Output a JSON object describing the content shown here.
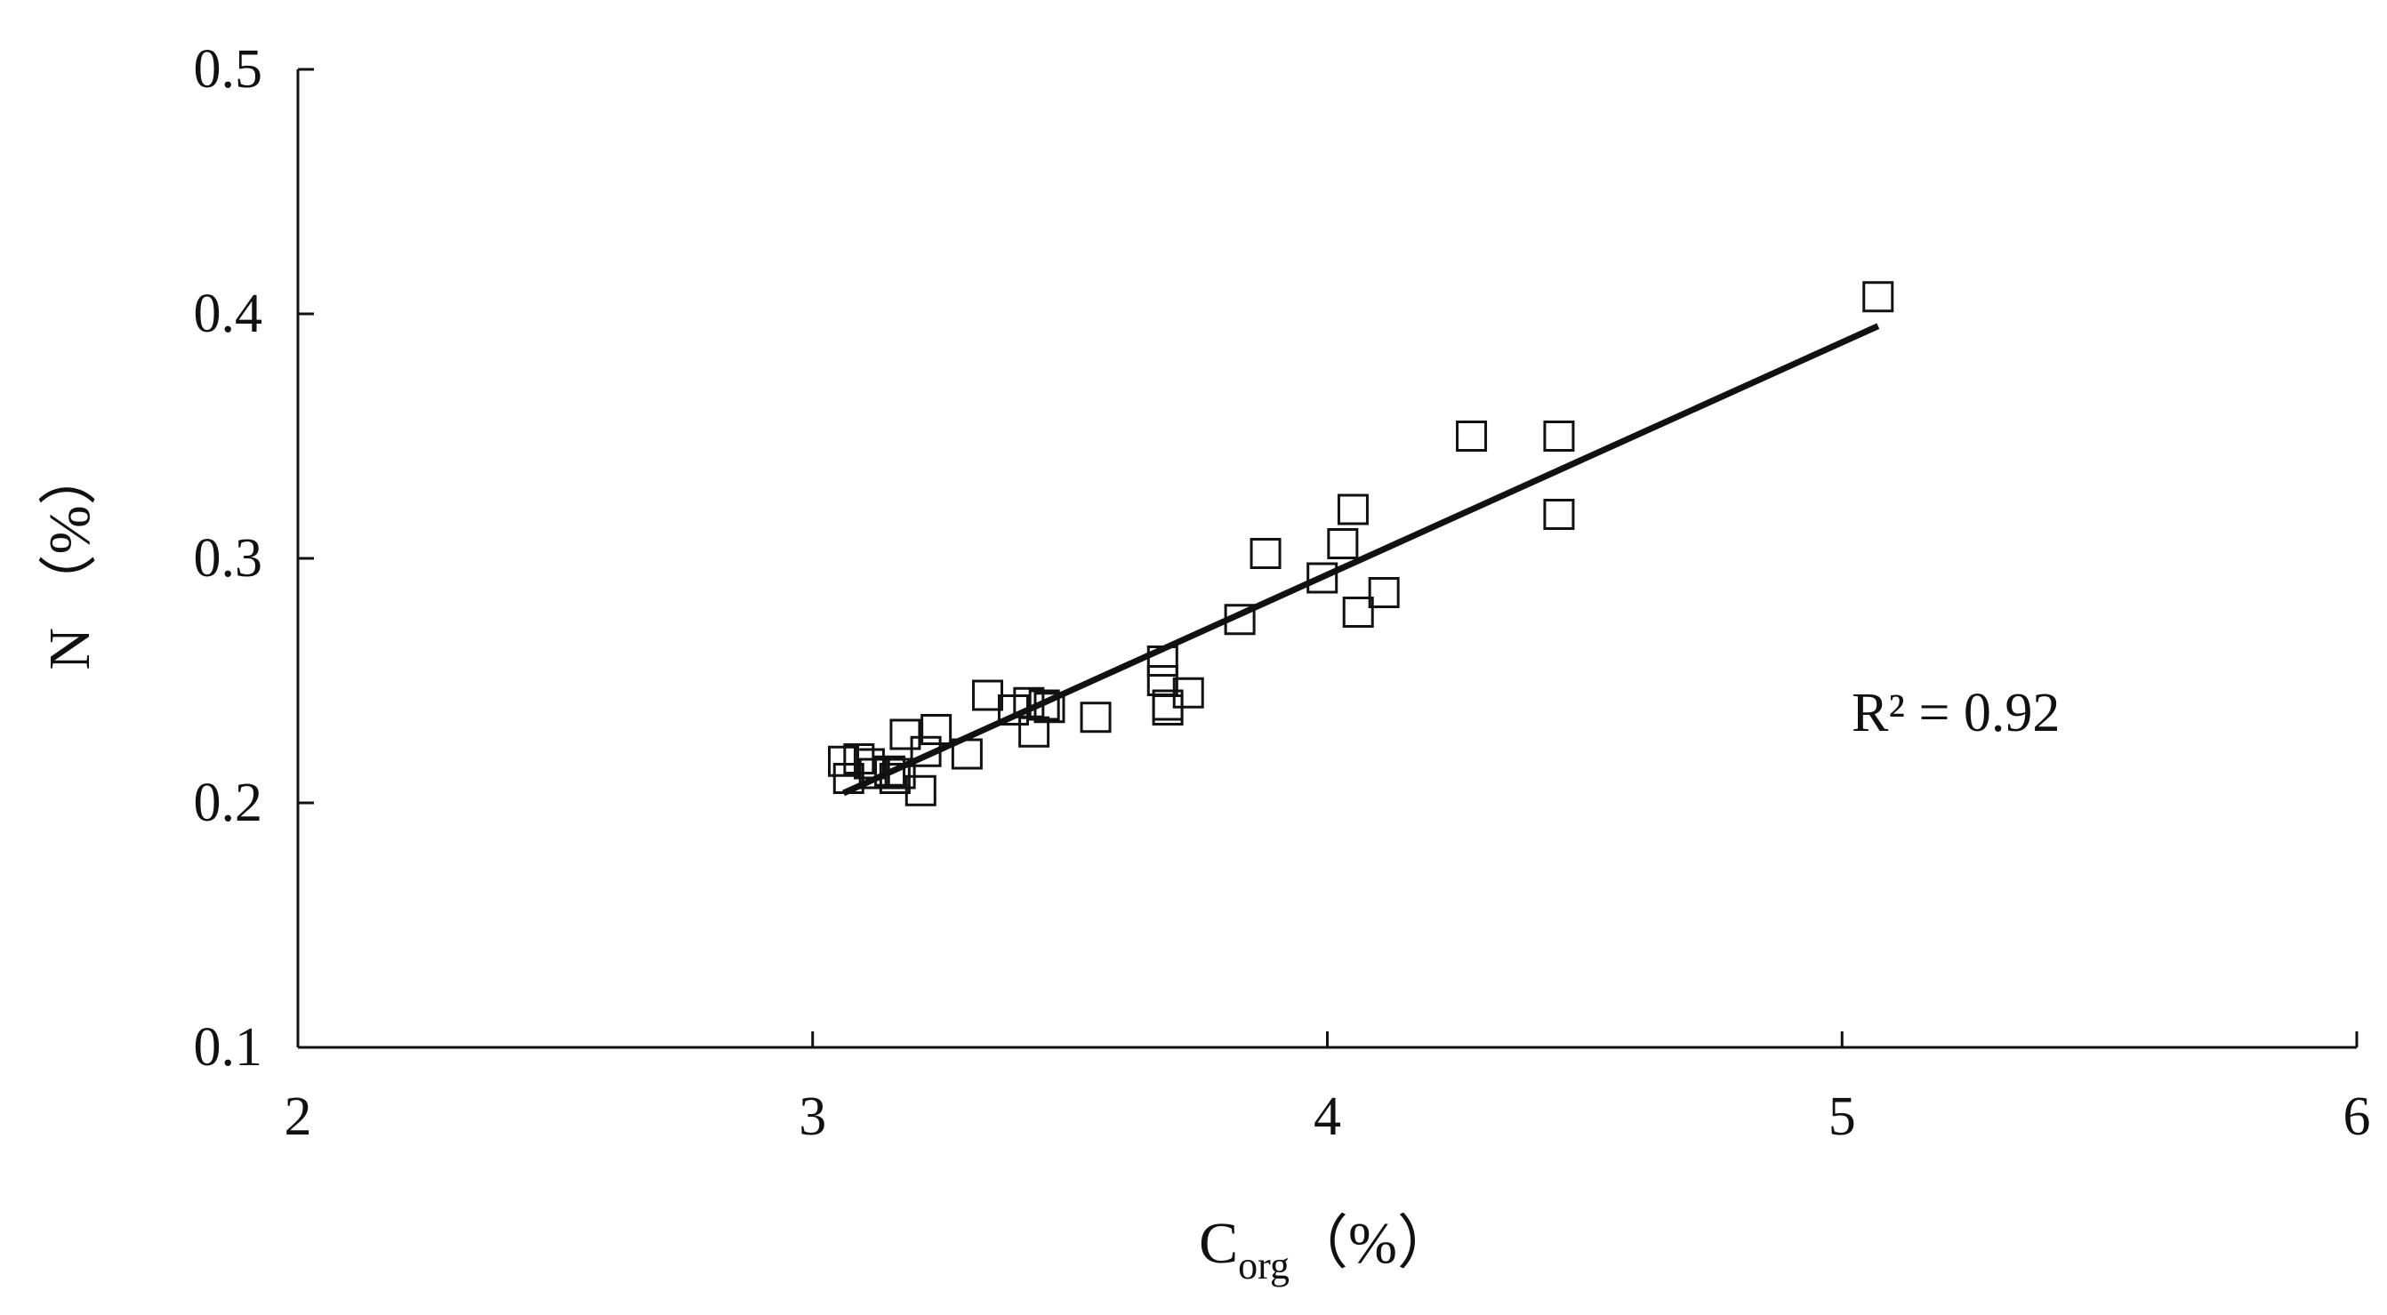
{
  "chart_data": {
    "type": "scatter",
    "xlabel": "C",
    "xlabel_subscript": "org",
    "xlabel_unit": "（%）",
    "ylabel": "N （%）",
    "xlim": [
      2,
      6
    ],
    "ylim": [
      0.1,
      0.5
    ],
    "xticks": [
      "2",
      "3",
      "4",
      "5",
      "6"
    ],
    "yticks": [
      "0.1",
      "0.2",
      "0.3",
      "0.4",
      "0.5"
    ],
    "grid": false,
    "marker": "open-square",
    "series": [
      {
        "points": [
          {
            "x": 3.06,
            "y": 0.217
          },
          {
            "x": 3.07,
            "y": 0.21
          },
          {
            "x": 3.09,
            "y": 0.218
          },
          {
            "x": 3.11,
            "y": 0.216
          },
          {
            "x": 3.12,
            "y": 0.212
          },
          {
            "x": 3.15,
            "y": 0.213
          },
          {
            "x": 3.16,
            "y": 0.21
          },
          {
            "x": 3.17,
            "y": 0.212
          },
          {
            "x": 3.18,
            "y": 0.228
          },
          {
            "x": 3.21,
            "y": 0.205
          },
          {
            "x": 3.22,
            "y": 0.221
          },
          {
            "x": 3.24,
            "y": 0.23
          },
          {
            "x": 3.3,
            "y": 0.22
          },
          {
            "x": 3.34,
            "y": 0.244
          },
          {
            "x": 3.39,
            "y": 0.238
          },
          {
            "x": 3.42,
            "y": 0.241
          },
          {
            "x": 3.43,
            "y": 0.229
          },
          {
            "x": 3.45,
            "y": 0.24
          },
          {
            "x": 3.46,
            "y": 0.239
          },
          {
            "x": 3.55,
            "y": 0.235
          },
          {
            "x": 3.68,
            "y": 0.258
          },
          {
            "x": 3.68,
            "y": 0.25
          },
          {
            "x": 3.69,
            "y": 0.24
          },
          {
            "x": 3.69,
            "y": 0.238
          },
          {
            "x": 3.73,
            "y": 0.245
          },
          {
            "x": 3.83,
            "y": 0.275
          },
          {
            "x": 3.88,
            "y": 0.302
          },
          {
            "x": 3.99,
            "y": 0.292
          },
          {
            "x": 4.03,
            "y": 0.306
          },
          {
            "x": 4.05,
            "y": 0.32
          },
          {
            "x": 4.06,
            "y": 0.278
          },
          {
            "x": 4.11,
            "y": 0.286
          },
          {
            "x": 4.28,
            "y": 0.35
          },
          {
            "x": 4.45,
            "y": 0.35
          },
          {
            "x": 4.45,
            "y": 0.318
          },
          {
            "x": 5.07,
            "y": 0.407
          }
        ]
      }
    ],
    "trendline": {
      "x": [
        3.06,
        5.07
      ],
      "y": [
        0.204,
        0.395
      ]
    },
    "annotation": "R² = 0.92"
  }
}
